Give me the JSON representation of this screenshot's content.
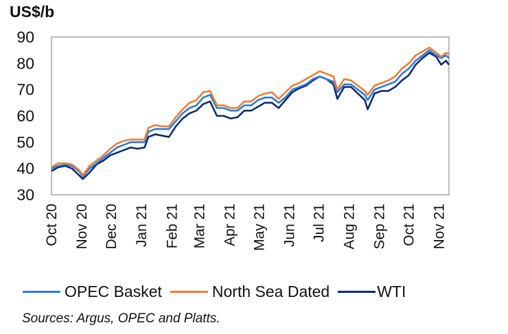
{
  "chart_data": {
    "type": "line",
    "title": "",
    "ylabel": "US$/b",
    "xlabel": "",
    "ylim": [
      30,
      90
    ],
    "yticks": [
      30,
      40,
      50,
      60,
      70,
      80,
      90
    ],
    "xlim": [
      "2020-10-01",
      "2021-11-11"
    ],
    "xtick_labels": [
      {
        "date": "2020-10-01",
        "label": "Oct 20"
      },
      {
        "date": "2020-11-01",
        "label": "Nov 20"
      },
      {
        "date": "2020-12-01",
        "label": "Dec 20"
      },
      {
        "date": "2021-01-01",
        "label": "Jan 21"
      },
      {
        "date": "2021-02-01",
        "label": "Feb 21"
      },
      {
        "date": "2021-03-01",
        "label": "Mar 21"
      },
      {
        "date": "2021-04-01",
        "label": "Apr 21"
      },
      {
        "date": "2021-05-01",
        "label": "May 21"
      },
      {
        "date": "2021-06-01",
        "label": "Jun 21"
      },
      {
        "date": "2021-07-01",
        "label": "Jul 21"
      },
      {
        "date": "2021-08-01",
        "label": "Aug 21"
      },
      {
        "date": "2021-09-01",
        "label": "Sep 21"
      },
      {
        "date": "2021-10-01",
        "label": "Oct 21"
      },
      {
        "date": "2021-11-01",
        "label": "Nov 21"
      }
    ],
    "grid": false,
    "legend_position": "bottom",
    "x": [
      "2020-10-01",
      "2020-10-08",
      "2020-10-15",
      "2020-10-22",
      "2020-10-29",
      "2020-11-02",
      "2020-11-09",
      "2020-11-16",
      "2020-11-23",
      "2020-11-30",
      "2020-12-07",
      "2020-12-14",
      "2020-12-21",
      "2020-12-28",
      "2021-01-04",
      "2021-01-08",
      "2021-01-15",
      "2021-01-22",
      "2021-01-29",
      "2021-02-05",
      "2021-02-12",
      "2021-02-19",
      "2021-02-26",
      "2021-03-05",
      "2021-03-12",
      "2021-03-19",
      "2021-03-26",
      "2021-04-02",
      "2021-04-09",
      "2021-04-16",
      "2021-04-23",
      "2021-04-30",
      "2021-05-07",
      "2021-05-14",
      "2021-05-21",
      "2021-05-28",
      "2021-06-04",
      "2021-06-11",
      "2021-06-18",
      "2021-06-25",
      "2021-07-02",
      "2021-07-09",
      "2021-07-16",
      "2021-07-20",
      "2021-07-27",
      "2021-08-03",
      "2021-08-10",
      "2021-08-17",
      "2021-08-20",
      "2021-08-27",
      "2021-09-03",
      "2021-09-10",
      "2021-09-17",
      "2021-09-24",
      "2021-10-01",
      "2021-10-08",
      "2021-10-15",
      "2021-10-22",
      "2021-10-29",
      "2021-11-03",
      "2021-11-08",
      "2021-11-11"
    ],
    "series": [
      {
        "name": "OPEC Basket",
        "color": "#2a7bd8",
        "values": [
          40,
          41,
          41.5,
          41,
          39,
          37,
          40,
          42,
          44,
          46,
          48,
          49,
          50,
          50,
          50,
          54,
          55,
          55,
          55,
          58,
          61,
          63,
          64,
          67,
          68,
          63,
          63,
          62,
          62,
          64,
          64,
          66,
          67,
          67,
          65,
          67,
          70,
          71,
          72,
          74,
          75,
          74,
          73,
          69,
          72,
          72,
          70,
          68,
          66,
          70,
          71,
          72,
          73,
          76,
          78,
          81,
          83,
          85,
          83,
          82,
          83,
          82
        ]
      },
      {
        "name": "North Sea Dated",
        "color": "#ed7d31",
        "values": [
          40.5,
          42,
          42,
          41.5,
          39.5,
          37.5,
          41,
          43,
          45,
          47.5,
          49.5,
          50.5,
          51,
          51,
          51,
          55.5,
          56.5,
          56,
          56,
          59.5,
          62.5,
          65,
          66,
          69,
          69.5,
          64,
          64,
          63,
          63,
          65.5,
          65.5,
          67.5,
          68.5,
          69,
          66.5,
          69,
          71.5,
          72.5,
          74,
          75.5,
          77,
          76,
          75,
          70,
          74,
          73.5,
          71.5,
          69.5,
          68,
          71.5,
          72.5,
          73.5,
          75,
          78,
          80,
          83,
          84.5,
          86,
          84,
          82.5,
          84,
          83.5
        ]
      },
      {
        "name": "WTI",
        "color": "#0d2a6b",
        "values": [
          39,
          40.5,
          41,
          40,
          37.5,
          36,
          38.5,
          41.5,
          43,
          45,
          46,
          47,
          48,
          47.5,
          48,
          52,
          53,
          52.5,
          52,
          56,
          59,
          61,
          62,
          64.5,
          65.5,
          60,
          60,
          59,
          59.5,
          62,
          62,
          63.5,
          65,
          65,
          63,
          66,
          69,
          70.5,
          71.5,
          73.5,
          75,
          74,
          72,
          66.5,
          71,
          71,
          68.5,
          66,
          62.5,
          68.5,
          69.5,
          69.5,
          71,
          73.5,
          75.5,
          79.5,
          82,
          84,
          82.5,
          79.5,
          81,
          79.5
        ]
      }
    ],
    "source": "Sources: Argus, OPEC and Platts."
  }
}
